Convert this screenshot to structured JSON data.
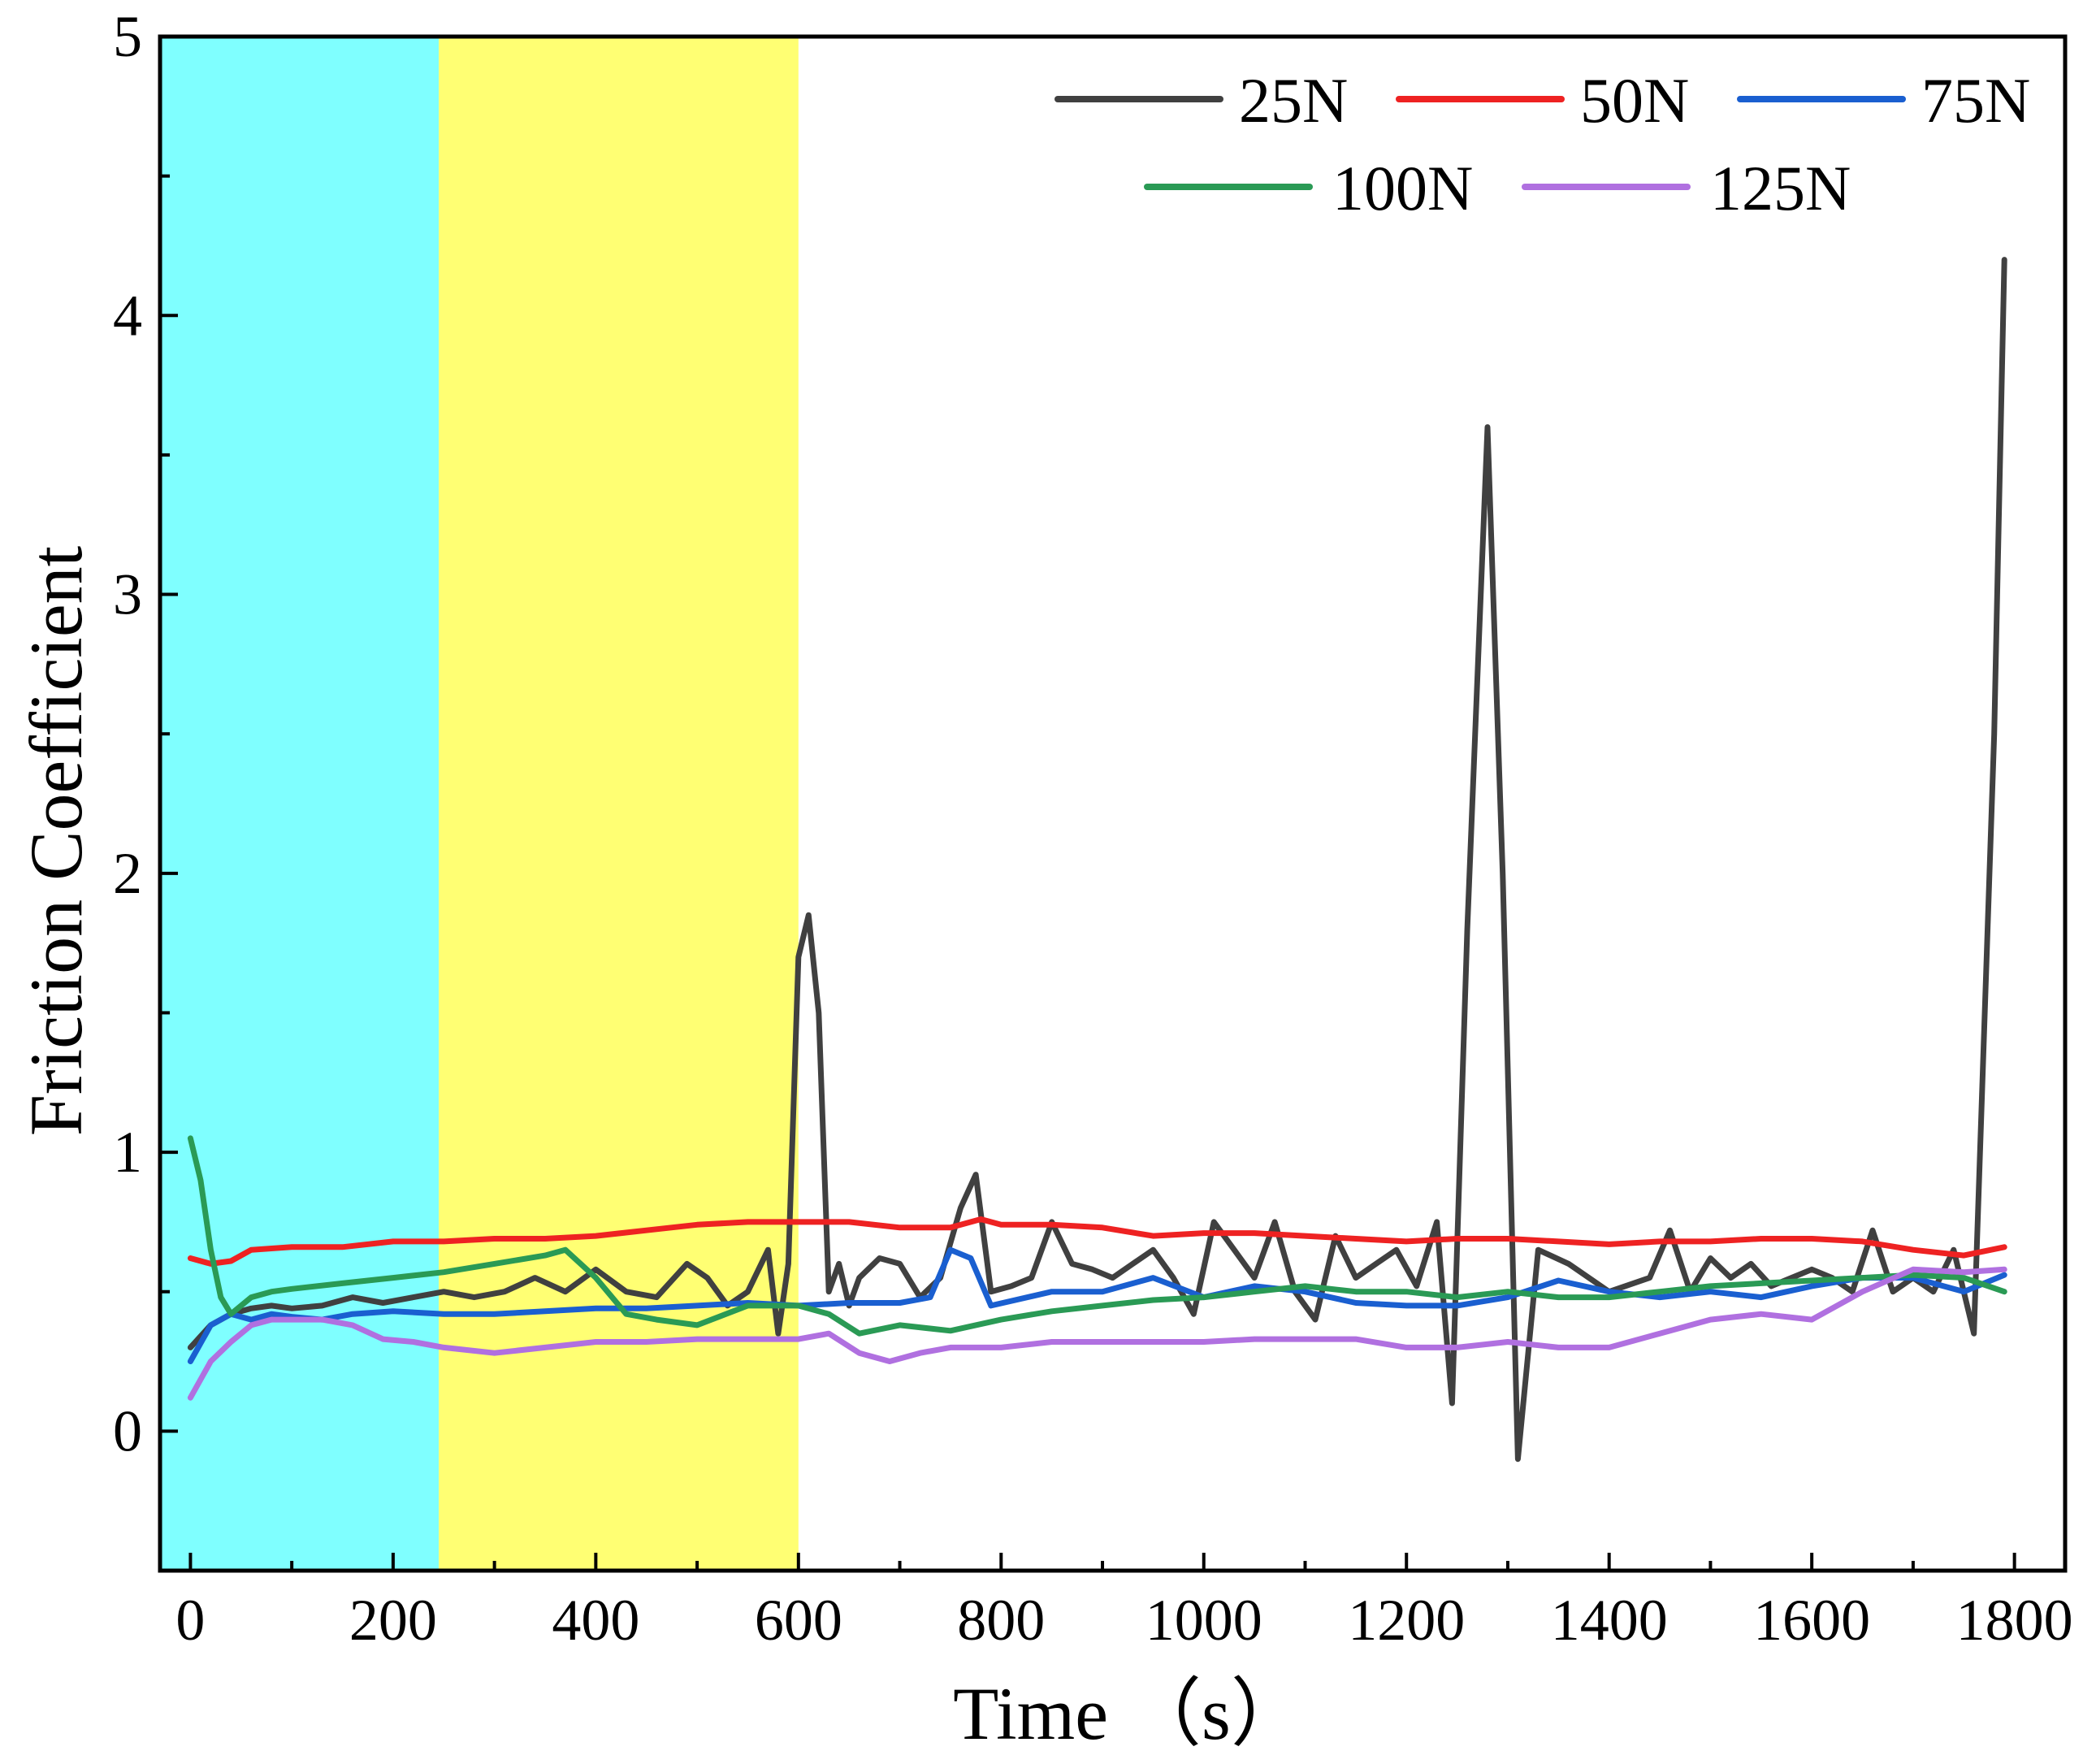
{
  "chart_data": {
    "type": "line",
    "title": "",
    "xlabel": "Time （s）",
    "ylabel": "Friction Coefficient",
    "xlim": [
      -30,
      1850
    ],
    "ylim": [
      -0.5,
      5
    ],
    "xticks": [
      0,
      200,
      400,
      600,
      800,
      1000,
      1200,
      1400,
      1600,
      1800
    ],
    "xtick_labels": [
      "0",
      "200",
      "400",
      "600",
      "800",
      "1000",
      "1200",
      "1400",
      "1600",
      "1800"
    ],
    "yticks": [
      0,
      1,
      2,
      3,
      4,
      5
    ],
    "ytick_labels": [
      "0",
      "1",
      "2",
      "3",
      "4",
      "5"
    ],
    "grid": false,
    "legend_position": "top-right",
    "shaded_regions": [
      {
        "x_start": -30,
        "x_end": 245,
        "color": "#00ffff",
        "opacity": 0.5
      },
      {
        "x_start": 245,
        "x_end": 600,
        "color": "#ffff00",
        "opacity": 0.55
      }
    ],
    "series": [
      {
        "name": "25N",
        "color": "#404040",
        "x": [
          0,
          20,
          40,
          60,
          80,
          100,
          130,
          160,
          190,
          220,
          250,
          280,
          310,
          340,
          370,
          400,
          430,
          460,
          490,
          510,
          530,
          550,
          570,
          580,
          590,
          600,
          610,
          620,
          630,
          640,
          650,
          660,
          680,
          700,
          720,
          740,
          760,
          775,
          790,
          810,
          830,
          850,
          870,
          890,
          910,
          930,
          950,
          970,
          990,
          1010,
          1030,
          1050,
          1070,
          1090,
          1110,
          1130,
          1150,
          1170,
          1190,
          1210,
          1230,
          1245,
          1260,
          1280,
          1295,
          1310,
          1330,
          1360,
          1400,
          1440,
          1460,
          1480,
          1500,
          1520,
          1540,
          1560,
          1580,
          1600,
          1620,
          1640,
          1660,
          1680,
          1700,
          1720,
          1740,
          1760,
          1780,
          1790
        ],
        "values": [
          0.3,
          0.38,
          0.42,
          0.44,
          0.45,
          0.44,
          0.45,
          0.48,
          0.46,
          0.48,
          0.5,
          0.48,
          0.5,
          0.55,
          0.5,
          0.58,
          0.5,
          0.48,
          0.6,
          0.55,
          0.45,
          0.5,
          0.65,
          0.35,
          0.6,
          1.7,
          1.85,
          1.5,
          0.5,
          0.6,
          0.45,
          0.55,
          0.62,
          0.6,
          0.48,
          0.55,
          0.8,
          0.92,
          0.5,
          0.52,
          0.55,
          0.75,
          0.6,
          0.58,
          0.55,
          0.6,
          0.65,
          0.55,
          0.42,
          0.75,
          0.65,
          0.55,
          0.75,
          0.5,
          0.4,
          0.7,
          0.55,
          0.6,
          0.65,
          0.52,
          0.75,
          0.1,
          1.8,
          3.6,
          2.0,
          -0.1,
          0.65,
          0.6,
          0.5,
          0.55,
          0.72,
          0.5,
          0.62,
          0.55,
          0.6,
          0.52,
          0.55,
          0.58,
          0.55,
          0.5,
          0.72,
          0.5,
          0.55,
          0.5,
          0.65,
          0.35,
          2.5,
          4.2
        ]
      },
      {
        "name": "50N",
        "color": "#ee2222",
        "x": [
          0,
          20,
          40,
          60,
          100,
          150,
          200,
          250,
          300,
          350,
          400,
          450,
          500,
          550,
          600,
          650,
          700,
          750,
          780,
          800,
          850,
          900,
          950,
          1000,
          1050,
          1100,
          1150,
          1200,
          1250,
          1300,
          1350,
          1400,
          1450,
          1500,
          1550,
          1600,
          1650,
          1700,
          1750,
          1790
        ],
        "values": [
          0.62,
          0.6,
          0.61,
          0.65,
          0.66,
          0.66,
          0.68,
          0.68,
          0.69,
          0.69,
          0.7,
          0.72,
          0.74,
          0.75,
          0.75,
          0.75,
          0.73,
          0.73,
          0.76,
          0.74,
          0.74,
          0.73,
          0.7,
          0.71,
          0.71,
          0.7,
          0.69,
          0.68,
          0.69,
          0.69,
          0.68,
          0.67,
          0.68,
          0.68,
          0.69,
          0.69,
          0.68,
          0.65,
          0.63,
          0.66
        ]
      },
      {
        "name": "75N",
        "color": "#1a5fd0",
        "x": [
          0,
          20,
          40,
          60,
          80,
          100,
          130,
          160,
          200,
          250,
          300,
          350,
          400,
          450,
          500,
          550,
          600,
          650,
          700,
          730,
          750,
          770,
          790,
          850,
          900,
          950,
          1000,
          1050,
          1100,
          1150,
          1200,
          1250,
          1300,
          1350,
          1400,
          1450,
          1500,
          1550,
          1600,
          1650,
          1700,
          1750,
          1790
        ],
        "values": [
          0.25,
          0.38,
          0.42,
          0.4,
          0.42,
          0.41,
          0.4,
          0.42,
          0.43,
          0.42,
          0.42,
          0.43,
          0.44,
          0.44,
          0.45,
          0.46,
          0.45,
          0.46,
          0.46,
          0.48,
          0.65,
          0.62,
          0.45,
          0.5,
          0.5,
          0.55,
          0.48,
          0.52,
          0.5,
          0.46,
          0.45,
          0.45,
          0.48,
          0.54,
          0.5,
          0.48,
          0.5,
          0.48,
          0.52,
          0.55,
          0.55,
          0.5,
          0.56
        ]
      },
      {
        "name": "100N",
        "color": "#2a9a55",
        "x": [
          0,
          10,
          20,
          30,
          40,
          60,
          80,
          100,
          150,
          200,
          250,
          300,
          350,
          370,
          400,
          430,
          460,
          500,
          550,
          600,
          630,
          660,
          700,
          750,
          800,
          850,
          900,
          950,
          1000,
          1050,
          1100,
          1150,
          1200,
          1250,
          1300,
          1350,
          1400,
          1450,
          1500,
          1550,
          1600,
          1650,
          1700,
          1750,
          1790
        ],
        "values": [
          1.05,
          0.9,
          0.65,
          0.48,
          0.42,
          0.48,
          0.5,
          0.51,
          0.53,
          0.55,
          0.57,
          0.6,
          0.63,
          0.65,
          0.55,
          0.42,
          0.4,
          0.38,
          0.45,
          0.45,
          0.42,
          0.35,
          0.38,
          0.36,
          0.4,
          0.43,
          0.45,
          0.47,
          0.48,
          0.5,
          0.52,
          0.5,
          0.5,
          0.48,
          0.5,
          0.48,
          0.48,
          0.5,
          0.52,
          0.53,
          0.54,
          0.55,
          0.56,
          0.55,
          0.5
        ]
      },
      {
        "name": "125N",
        "color": "#b070e0",
        "x": [
          0,
          20,
          40,
          60,
          80,
          100,
          130,
          160,
          190,
          220,
          250,
          300,
          350,
          400,
          450,
          500,
          550,
          600,
          630,
          660,
          690,
          720,
          750,
          800,
          850,
          900,
          950,
          1000,
          1050,
          1100,
          1150,
          1200,
          1250,
          1300,
          1350,
          1400,
          1450,
          1500,
          1550,
          1600,
          1650,
          1700,
          1750,
          1790
        ],
        "values": [
          0.12,
          0.25,
          0.32,
          0.38,
          0.4,
          0.4,
          0.4,
          0.38,
          0.33,
          0.32,
          0.3,
          0.28,
          0.3,
          0.32,
          0.32,
          0.33,
          0.33,
          0.33,
          0.35,
          0.28,
          0.25,
          0.28,
          0.3,
          0.3,
          0.32,
          0.32,
          0.32,
          0.32,
          0.33,
          0.33,
          0.33,
          0.3,
          0.3,
          0.32,
          0.3,
          0.3,
          0.35,
          0.4,
          0.42,
          0.4,
          0.5,
          0.58,
          0.57,
          0.58
        ]
      }
    ]
  }
}
